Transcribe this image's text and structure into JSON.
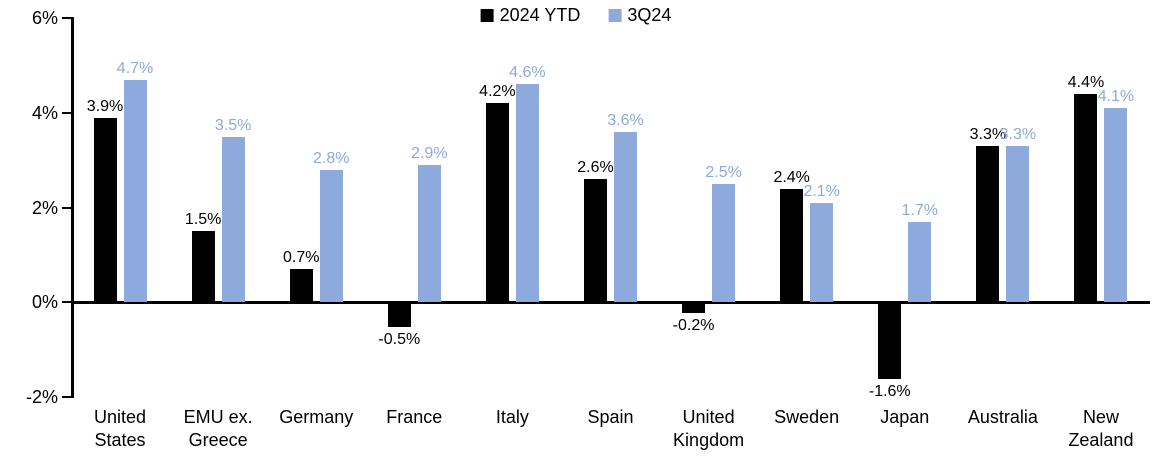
{
  "chart_data": {
    "type": "bar",
    "title": "",
    "xlabel": "",
    "ylabel": "",
    "ylim": [
      -2,
      6
    ],
    "grid": false,
    "legend_position": "top-center",
    "categories": [
      "United States",
      "EMU ex. Greece",
      "Germany",
      "France",
      "Italy",
      "Spain",
      "United Kingdom",
      "Sweden",
      "Japan",
      "Australia",
      "New Zealand"
    ],
    "y_axis": {
      "tick_values": [
        6,
        4,
        2,
        0,
        -2
      ],
      "tick_labels": [
        "6%",
        "4%",
        "2%",
        "0%",
        "-2%"
      ]
    },
    "series": [
      {
        "name": "2024 YTD",
        "color": "#000000",
        "label_color": "#000000",
        "values": [
          3.9,
          1.5,
          0.7,
          -0.5,
          4.2,
          2.6,
          -0.2,
          2.4,
          -1.6,
          3.3,
          4.4
        ],
        "labels": [
          "3.9%",
          "1.5%",
          "0.7%",
          "-0.5%",
          "4.2%",
          "2.6%",
          "-0.2%",
          "2.4%",
          "-1.6%",
          "3.3%",
          "4.4%"
        ]
      },
      {
        "name": "3Q24",
        "color": "#8EA9DB",
        "label_color": "#8EA9DB",
        "values": [
          4.7,
          3.5,
          2.8,
          2.9,
          4.6,
          3.6,
          2.5,
          2.1,
          1.7,
          3.3,
          4.1
        ],
        "labels": [
          "4.7%",
          "3.5%",
          "2.8%",
          "2.9%",
          "4.6%",
          "3.6%",
          "2.5%",
          "2.1%",
          "1.7%",
          "3.3%",
          "4.1%"
        ]
      }
    ]
  }
}
